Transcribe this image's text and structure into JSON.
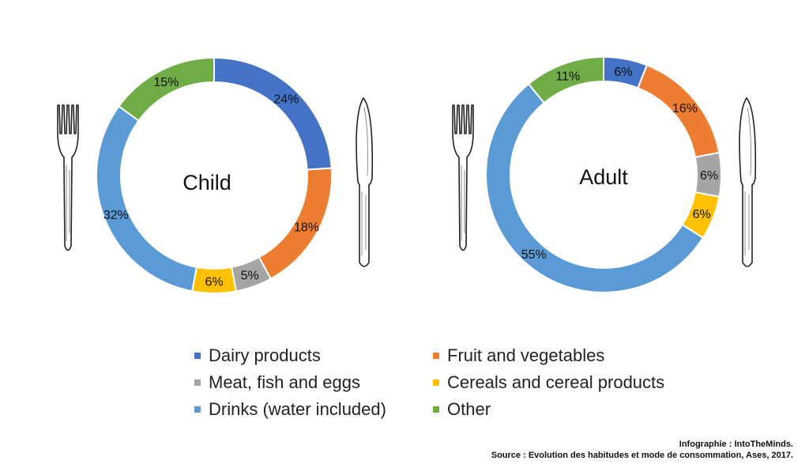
{
  "colors": {
    "dairy": "#4472C4",
    "fruit": "#ED7D31",
    "meat": "#A5A5A5",
    "cereals": "#FFC000",
    "drinks": "#5B9BD5",
    "other": "#70AD47"
  },
  "chart_data": [
    {
      "type": "pie",
      "subtype": "donut",
      "center_label": "Child",
      "categories": [
        "Dairy products",
        "Fruit and vegetables",
        "Meat, fish and eggs",
        "Cereals and cereal products",
        "Drinks (water included)",
        "Other"
      ],
      "values": [
        24,
        18,
        5,
        6,
        32,
        15
      ],
      "labels": [
        "24%",
        "18%",
        "5%",
        "6%",
        "32%",
        "15%"
      ],
      "unit": "%"
    },
    {
      "type": "pie",
      "subtype": "donut",
      "center_label": "Adult",
      "categories": [
        "Dairy products",
        "Fruit and vegetables",
        "Meat, fish and eggs",
        "Cereals and cereal products",
        "Drinks (water included)",
        "Other"
      ],
      "values": [
        6,
        16,
        6,
        6,
        55,
        11
      ],
      "labels": [
        "6%",
        "16%",
        "6%",
        "6%",
        "55%",
        "11%"
      ],
      "unit": "%"
    }
  ],
  "legend": {
    "placement": "bottom",
    "items": [
      {
        "label": "Dairy products",
        "color_key": "dairy"
      },
      {
        "label": "Fruit and vegetables",
        "color_key": "fruit"
      },
      {
        "label": "Meat, fish and eggs",
        "color_key": "meat"
      },
      {
        "label": "Cereals and cereal products",
        "color_key": "cereals"
      },
      {
        "label": "Drinks (water included)",
        "color_key": "drinks"
      },
      {
        "label": "Other",
        "color_key": "other"
      }
    ]
  },
  "credits": {
    "line1": "Infographie : IntoTheMinds.",
    "line2": "Source : Evolution des habitudes et mode de consommation, Ases, 2017."
  }
}
